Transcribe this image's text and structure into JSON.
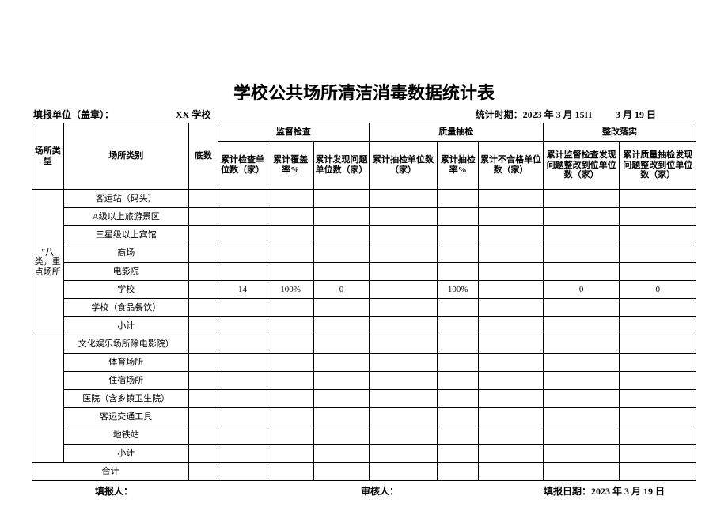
{
  "title": "学校公共场所清洁消毒数据统计表",
  "header": {
    "filing_unit_label": "填报单位（盖章）：",
    "school_name": "XX 学校",
    "period_label": "统计时期：2023 年 3 月 15H",
    "period_end": "3 月 19 日"
  },
  "columns": {
    "type": "场所类型",
    "category": "场所类别",
    "base": "底数",
    "group_a": "监督检查",
    "group_b": "质量抽检",
    "group_c": "整改落实",
    "a1": "累计检查单位数（家）",
    "a2": "累计覆盖率%",
    "a3": "累计发现问题单位数（家）",
    "b1": "累计抽检单位数（家）",
    "b2": "累计抽检率%",
    "b3": "累计不合格单位数（家）",
    "c1": "累计监督检查发现问题整改到位单位数（家）",
    "c2": "累计质量抽检发现问题整改到位单位数（家）"
  },
  "group1_label": "\"八类，重点场所",
  "group1_rows": [
    {
      "cat": "客运站（码头）",
      "a1": "",
      "a2": "",
      "a3": "",
      "b1": "",
      "b2": "",
      "b3": "",
      "c1": "",
      "c2": ""
    },
    {
      "cat": "A级以上旅游景区",
      "a1": "",
      "a2": "",
      "a3": "",
      "b1": "",
      "b2": "",
      "b3": "",
      "c1": "",
      "c2": ""
    },
    {
      "cat": "三星级以上宾馆",
      "a1": "",
      "a2": "",
      "a3": "",
      "b1": "",
      "b2": "",
      "b3": "",
      "c1": "",
      "c2": ""
    },
    {
      "cat": "商场",
      "a1": "",
      "a2": "",
      "a3": "",
      "b1": "",
      "b2": "",
      "b3": "",
      "c1": "",
      "c2": ""
    },
    {
      "cat": "电影院",
      "a1": "",
      "a2": "",
      "a3": "",
      "b1": "",
      "b2": "",
      "b3": "",
      "c1": "",
      "c2": ""
    },
    {
      "cat": "学校",
      "a1": "14",
      "a2": "100%",
      "a3": "0",
      "b1": "",
      "b2": "100%",
      "b3": "",
      "c1": "0",
      "c2": "0"
    },
    {
      "cat": "学校（食品餐饮）",
      "a1": "",
      "a2": "",
      "a3": "",
      "b1": "",
      "b2": "",
      "b3": "",
      "c1": "",
      "c2": ""
    },
    {
      "cat": "小计",
      "a1": "",
      "a2": "",
      "a3": "",
      "b1": "",
      "b2": "",
      "b3": "",
      "c1": "",
      "c2": ""
    }
  ],
  "group2_rows": [
    {
      "cat": "文化娱乐场所除电影院）",
      "a1": "",
      "a2": "",
      "a3": "",
      "b1": "",
      "b2": "",
      "b3": "",
      "c1": "",
      "c2": ""
    },
    {
      "cat": "体育场所",
      "a1": "",
      "a2": "",
      "a3": "",
      "b1": "",
      "b2": "",
      "b3": "",
      "c1": "",
      "c2": ""
    },
    {
      "cat": "住宿场所",
      "a1": "",
      "a2": "",
      "a3": "",
      "b1": "",
      "b2": "",
      "b3": "",
      "c1": "",
      "c2": ""
    },
    {
      "cat": "医院（含乡镇卫生院）",
      "a1": "",
      "a2": "",
      "a3": "",
      "b1": "",
      "b2": "",
      "b3": "",
      "c1": "",
      "c2": ""
    },
    {
      "cat": "客运交通工具",
      "a1": "",
      "a2": "",
      "a3": "",
      "b1": "",
      "b2": "",
      "b3": "",
      "c1": "",
      "c2": ""
    },
    {
      "cat": "地铁站",
      "a1": "",
      "a2": "",
      "a3": "",
      "b1": "",
      "b2": "",
      "b3": "",
      "c1": "",
      "c2": ""
    },
    {
      "cat": "小计",
      "a1": "",
      "a2": "",
      "a3": "",
      "b1": "",
      "b2": "",
      "b3": "",
      "c1": "",
      "c2": ""
    }
  ],
  "total_label": "合计",
  "footer": {
    "reporter_label": "填报人：",
    "reviewer_label": "审核人：",
    "report_date_label": "填报日期：2023 年 3 月 19 日"
  }
}
